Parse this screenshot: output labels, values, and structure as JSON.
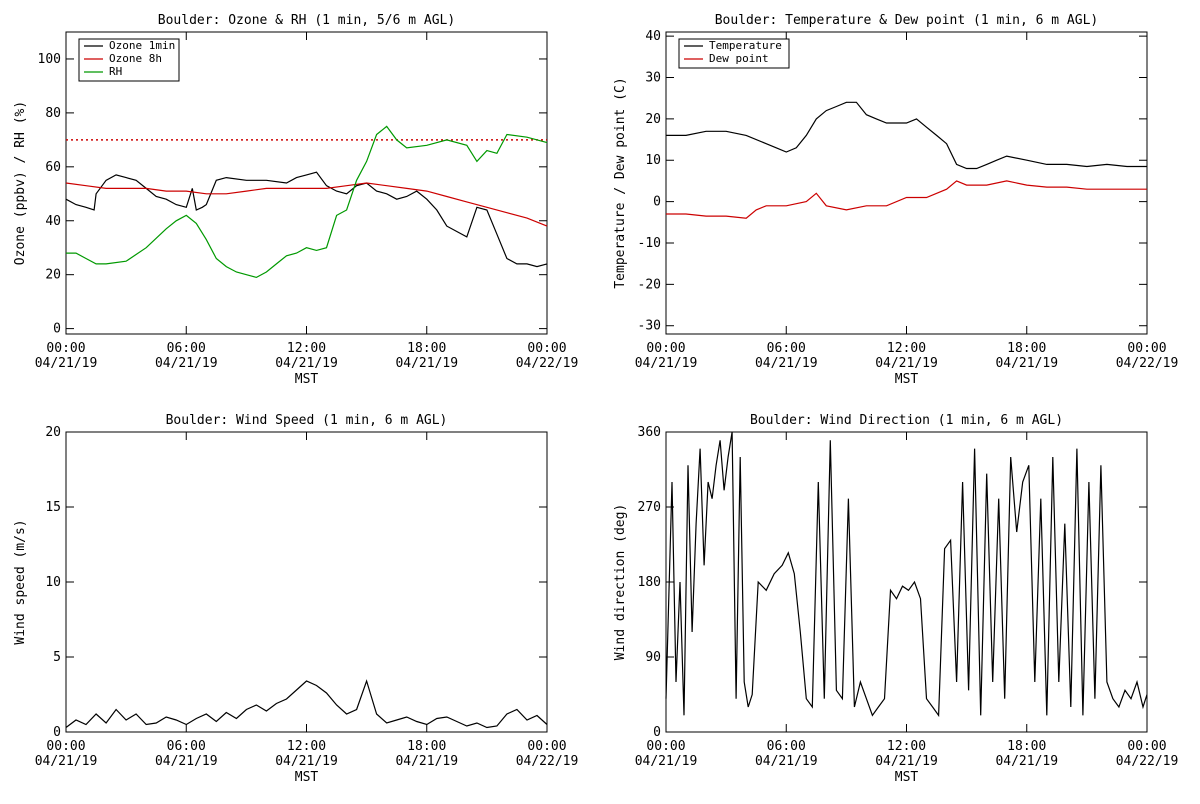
{
  "chart_data": [
    {
      "type": "line",
      "title": "Boulder: Ozone & RH (1 min, 5/6 m AGL)",
      "ylabel": "Ozone (ppbv) / RH (%)",
      "xlabel": "MST",
      "xticks": [
        [
          "00:00",
          "04/21/19"
        ],
        [
          "06:00",
          "04/21/19"
        ],
        [
          "12:00",
          "04/21/19"
        ],
        [
          "18:00",
          "04/21/19"
        ],
        [
          "00:00",
          "04/22/19"
        ]
      ],
      "xlim_hours": [
        0,
        24
      ],
      "ylim": [
        -2,
        110
      ],
      "yticks": [
        0,
        20,
        40,
        60,
        80,
        100
      ],
      "reference_line": {
        "y": 70,
        "style": "dotted",
        "color": "#cc0000"
      },
      "legend": {
        "placement": "top-left"
      },
      "series": [
        {
          "name": "Ozone 1min",
          "color": "#000000",
          "x": [
            0,
            0.5,
            1,
            1.4,
            1.5,
            2,
            2.5,
            3,
            3.5,
            4,
            4.5,
            5,
            5.5,
            6,
            6.3,
            6.5,
            6.8,
            7,
            7.5,
            8,
            9,
            10,
            11,
            11.5,
            12,
            12.5,
            13,
            13.5,
            14,
            14.5,
            15,
            15.5,
            16,
            16.5,
            17,
            17.5,
            18,
            18.5,
            19,
            19.5,
            20,
            20.5,
            21,
            21.5,
            22,
            22.5,
            23,
            23.5,
            24
          ],
          "y": [
            48,
            46,
            45,
            44,
            50,
            55,
            57,
            56,
            55,
            52,
            49,
            48,
            46,
            45,
            52,
            44,
            45,
            46,
            55,
            56,
            55,
            55,
            54,
            56,
            57,
            58,
            53,
            51,
            50,
            53,
            54,
            51,
            50,
            48,
            49,
            51,
            48,
            44,
            38,
            36,
            34,
            45,
            44,
            35,
            26,
            24,
            24,
            23,
            24
          ]
        },
        {
          "name": "Ozone 8h",
          "color": "#cc0000",
          "x": [
            0,
            1,
            2,
            3,
            4,
            5,
            6,
            7,
            8,
            9,
            10,
            11,
            12,
            13,
            14,
            15,
            16,
            17,
            18,
            19,
            20,
            21,
            22,
            23,
            24
          ],
          "y": [
            54,
            53,
            52,
            52,
            52,
            51,
            51,
            50,
            50,
            51,
            52,
            52,
            52,
            52,
            53,
            54,
            53,
            52,
            51,
            49,
            47,
            45,
            43,
            41,
            38
          ]
        },
        {
          "name": "RH",
          "color": "#009900",
          "x": [
            0,
            0.5,
            1,
            1.5,
            2,
            3,
            4,
            5,
            5.5,
            6,
            6.5,
            7,
            7.5,
            8,
            8.5,
            9,
            9.5,
            10,
            10.5,
            11,
            11.5,
            12,
            12.5,
            13,
            13.5,
            14,
            14.5,
            15,
            15.5,
            16,
            16.5,
            17,
            18,
            19,
            20,
            20.5,
            21,
            21.5,
            22,
            23,
            24
          ],
          "y": [
            28,
            28,
            26,
            24,
            24,
            25,
            30,
            37,
            40,
            42,
            39,
            33,
            26,
            23,
            21,
            20,
            19,
            21,
            24,
            27,
            28,
            30,
            29,
            30,
            42,
            44,
            55,
            62,
            72,
            75,
            70,
            67,
            68,
            70,
            68,
            62,
            66,
            65,
            72,
            71,
            69
          ]
        }
      ]
    },
    {
      "type": "line",
      "title": "Boulder: Temperature & Dew point (1 min, 6 m AGL)",
      "ylabel": "Temperature / Dew point (C)",
      "xlabel": "MST",
      "xticks": [
        [
          "00:00",
          "04/21/19"
        ],
        [
          "06:00",
          "04/21/19"
        ],
        [
          "12:00",
          "04/21/19"
        ],
        [
          "18:00",
          "04/21/19"
        ],
        [
          "00:00",
          "04/22/19"
        ]
      ],
      "xlim_hours": [
        0,
        24
      ],
      "ylim": [
        -32,
        41
      ],
      "yticks": [
        -30,
        -20,
        -10,
        0,
        10,
        20,
        30,
        40
      ],
      "legend": {
        "placement": "top-left"
      },
      "series": [
        {
          "name": "Temperature",
          "color": "#000000",
          "x": [
            0,
            1,
            2,
            3,
            4,
            5,
            5.5,
            6,
            6.5,
            7,
            7.5,
            8,
            8.5,
            9,
            9.5,
            10,
            10.5,
            11,
            11.5,
            12,
            12.5,
            13,
            13.5,
            14,
            14.5,
            15,
            15.5,
            16,
            16.5,
            17,
            18,
            19,
            20,
            21,
            22,
            23,
            24
          ],
          "y": [
            16,
            16,
            17,
            17,
            16,
            14,
            13,
            12,
            13,
            16,
            20,
            22,
            23,
            24,
            24,
            21,
            20,
            19,
            19,
            19,
            20,
            18,
            16,
            14,
            9,
            8,
            8,
            9,
            10,
            11,
            10,
            9,
            9,
            8.5,
            9,
            8.5,
            8.5
          ]
        },
        {
          "name": "Dew point",
          "color": "#cc0000",
          "x": [
            0,
            1,
            2,
            3,
            4,
            4.5,
            5,
            6,
            7,
            7.5,
            8,
            9,
            10,
            11,
            12,
            13,
            14,
            14.5,
            15,
            16,
            17,
            18,
            19,
            20,
            21,
            22,
            23,
            24
          ],
          "y": [
            -3,
            -3,
            -3.5,
            -3.5,
            -4,
            -2,
            -1,
            -1,
            0,
            2,
            -1,
            -2,
            -1,
            -1,
            1,
            1,
            3,
            5,
            4,
            4,
            5,
            4,
            3.5,
            3.5,
            3,
            3,
            3,
            3
          ]
        }
      ]
    },
    {
      "type": "line",
      "title": "Boulder: Wind Speed (1 min, 6 m AGL)",
      "ylabel": "Wind speed (m/s)",
      "xlabel": "MST",
      "xticks": [
        [
          "00:00",
          "04/21/19"
        ],
        [
          "06:00",
          "04/21/19"
        ],
        [
          "12:00",
          "04/21/19"
        ],
        [
          "18:00",
          "04/21/19"
        ],
        [
          "00:00",
          "04/22/19"
        ]
      ],
      "xlim_hours": [
        0,
        24
      ],
      "ylim": [
        0,
        20
      ],
      "yticks": [
        0,
        5,
        10,
        15,
        20
      ],
      "series": [
        {
          "name": "",
          "color": "#000000",
          "x": [
            0,
            0.5,
            1,
            1.5,
            2,
            2.5,
            3,
            3.5,
            4,
            4.5,
            5,
            5.5,
            6,
            6.5,
            7,
            7.5,
            8,
            8.5,
            9,
            9.5,
            10,
            10.5,
            11,
            11.5,
            12,
            12.5,
            13,
            13.5,
            14,
            14.5,
            15,
            15.5,
            16,
            16.5,
            17,
            17.5,
            18,
            18.5,
            19,
            19.5,
            20,
            20.5,
            21,
            21.5,
            22,
            22.5,
            23,
            23.5,
            24
          ],
          "y": [
            0.3,
            0.8,
            0.5,
            1.2,
            0.6,
            1.5,
            0.8,
            1.2,
            0.5,
            0.6,
            1,
            0.8,
            0.5,
            0.9,
            1.2,
            0.7,
            1.3,
            0.9,
            1.5,
            1.8,
            1.4,
            1.9,
            2.2,
            2.8,
            3.4,
            3.1,
            2.6,
            1.8,
            1.2,
            1.5,
            3.4,
            1.2,
            0.6,
            0.8,
            1,
            0.7,
            0.5,
            0.9,
            1,
            0.7,
            0.4,
            0.6,
            0.3,
            0.4,
            1.2,
            1.5,
            0.8,
            1.1,
            0.5
          ]
        }
      ]
    },
    {
      "type": "line",
      "title": "Boulder: Wind Direction (1 min, 6 m AGL)",
      "ylabel": "Wind direction (deg)",
      "xlabel": "MST",
      "xticks": [
        [
          "00:00",
          "04/21/19"
        ],
        [
          "06:00",
          "04/21/19"
        ],
        [
          "12:00",
          "04/21/19"
        ],
        [
          "18:00",
          "04/21/19"
        ],
        [
          "00:00",
          "04/22/19"
        ]
      ],
      "xlim_hours": [
        0,
        24
      ],
      "ylim": [
        0,
        360
      ],
      "yticks": [
        0,
        90,
        180,
        270,
        360
      ],
      "series": [
        {
          "name": "",
          "color": "#000000",
          "x": [
            0,
            0.3,
            0.5,
            0.7,
            0.9,
            1.1,
            1.3,
            1.5,
            1.7,
            1.9,
            2.1,
            2.3,
            2.5,
            2.7,
            2.9,
            3.1,
            3.3,
            3.5,
            3.7,
            3.9,
            4.1,
            4.3,
            4.6,
            5,
            5.4,
            5.8,
            6.1,
            6.4,
            6.7,
            7,
            7.3,
            7.6,
            7.9,
            8.2,
            8.5,
            8.8,
            9.1,
            9.4,
            9.7,
            10,
            10.3,
            10.6,
            10.9,
            11.2,
            11.5,
            11.8,
            12.1,
            12.4,
            12.7,
            13,
            13.3,
            13.6,
            13.9,
            14.2,
            14.5,
            14.8,
            15.1,
            15.4,
            15.7,
            16,
            16.3,
            16.6,
            16.9,
            17.2,
            17.5,
            17.8,
            18.1,
            18.4,
            18.7,
            19,
            19.3,
            19.6,
            19.9,
            20.2,
            20.5,
            20.8,
            21.1,
            21.4,
            21.7,
            22,
            22.3,
            22.6,
            22.9,
            23.2,
            23.5,
            23.8,
            24
          ],
          "y": [
            40,
            300,
            60,
            180,
            20,
            320,
            120,
            250,
            340,
            200,
            300,
            280,
            320,
            350,
            290,
            330,
            360,
            40,
            330,
            60,
            30,
            45,
            180,
            170,
            190,
            200,
            215,
            190,
            120,
            40,
            30,
            300,
            40,
            350,
            50,
            40,
            280,
            30,
            60,
            40,
            20,
            30,
            40,
            170,
            160,
            175,
            170,
            180,
            160,
            40,
            30,
            20,
            220,
            230,
            60,
            300,
            50,
            340,
            20,
            310,
            60,
            280,
            40,
            330,
            240,
            300,
            320,
            60,
            280,
            20,
            330,
            60,
            250,
            30,
            340,
            20,
            300,
            40,
            320,
            60,
            40,
            30,
            50,
            40,
            60,
            30,
            45
          ]
        }
      ]
    }
  ]
}
